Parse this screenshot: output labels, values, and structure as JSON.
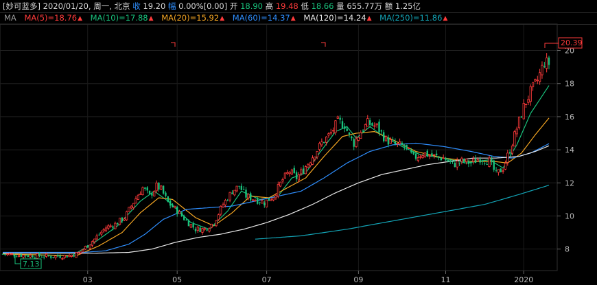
{
  "header": {
    "name": "[妙可蓝多]",
    "date": "2020/01/20,",
    "weekday": "周一,",
    "market": "北京",
    "close_label": "收",
    "close": "19.20",
    "change_label": "幅",
    "change": "0.00%[0.00]",
    "open_label": "开",
    "open": "18.90",
    "high_label": "高",
    "high": "19.48",
    "low_label": "低",
    "low": "18.66",
    "volume_label": "量",
    "volume": "655.77万",
    "amount_label": "额",
    "amount": "1.25亿"
  },
  "ma_legend": {
    "title": "MA",
    "items": [
      {
        "text": "MA(5)=18.76",
        "color": "#ff3b3b"
      },
      {
        "text": "MA(10)=17.88",
        "color": "#19c37d"
      },
      {
        "text": "MA(20)=15.92",
        "color": "#f5a623"
      },
      {
        "text": "MA(60)=14.37",
        "color": "#2f8fff"
      },
      {
        "text": "MA(120)=14.24",
        "color": "#e8e8e8"
      },
      {
        "text": "MA(250)=11.86",
        "color": "#13a3b5"
      }
    ]
  },
  "chart_data": {
    "type": "candlestick",
    "x_ticks": [
      "03",
      "05",
      "07",
      "09",
      "11",
      "2020"
    ],
    "y_ticks": [
      8,
      10,
      12,
      14,
      16,
      18,
      20
    ],
    "ylim": [
      6.7,
      21.6
    ],
    "high_marker": "20.39",
    "low_marker": "7.13",
    "close_path": [
      [
        0,
        7.7
      ],
      [
        12,
        7.6
      ],
      [
        22,
        7.55
      ],
      [
        29,
        7.6
      ],
      [
        33,
        7.75
      ],
      [
        36,
        8.1
      ],
      [
        40,
        8.6
      ],
      [
        45,
        9.3
      ],
      [
        49,
        9.5
      ],
      [
        53,
        9.9
      ],
      [
        56,
        10.6
      ],
      [
        59,
        11.3
      ],
      [
        61,
        11.7
      ],
      [
        64,
        11.2
      ],
      [
        67,
        11.8
      ],
      [
        69,
        11.6
      ],
      [
        72,
        10.8
      ],
      [
        76,
        10.3
      ],
      [
        80,
        9.7
      ],
      [
        84,
        9.2
      ],
      [
        88,
        9.2
      ],
      [
        92,
        9.6
      ],
      [
        96,
        10.7
      ],
      [
        100,
        11.5
      ],
      [
        103,
        11.8
      ],
      [
        106,
        11.2
      ],
      [
        110,
        11.0
      ],
      [
        114,
        10.8
      ],
      [
        118,
        11.2
      ],
      [
        122,
        12.2
      ],
      [
        125,
        12.7
      ],
      [
        128,
        12.3
      ],
      [
        131,
        12.8
      ],
      [
        135,
        13.6
      ],
      [
        139,
        14.4
      ],
      [
        143,
        15.0
      ],
      [
        146,
        15.7
      ],
      [
        149,
        15.5
      ],
      [
        151,
        14.8
      ],
      [
        153,
        14.4
      ],
      [
        156,
        15.1
      ],
      [
        159,
        15.6
      ],
      [
        163,
        15.4
      ],
      [
        167,
        14.6
      ],
      [
        171,
        14.3
      ],
      [
        175,
        14.2
      ],
      [
        179,
        13.5
      ],
      [
        183,
        13.8
      ],
      [
        188,
        13.6
      ],
      [
        192,
        13.5
      ],
      [
        196,
        13.1
      ],
      [
        200,
        13.3
      ],
      [
        204,
        13.2
      ],
      [
        208,
        13.5
      ],
      [
        212,
        13.3
      ],
      [
        215,
        12.5
      ],
      [
        218,
        12.9
      ],
      [
        221,
        14.0
      ],
      [
        224,
        15.3
      ],
      [
        227,
        16.6
      ],
      [
        230,
        17.5
      ],
      [
        233,
        18.2
      ],
      [
        236,
        19.3
      ],
      [
        238,
        19.2
      ]
    ],
    "ma_lines": [
      {
        "name": "MA(10)",
        "color": "#19c37d",
        "points": [
          [
            0,
            7.7
          ],
          [
            30,
            7.6
          ],
          [
            40,
            8.4
          ],
          [
            50,
            9.4
          ],
          [
            60,
            10.9
          ],
          [
            66,
            11.5
          ],
          [
            72,
            10.9
          ],
          [
            82,
            9.6
          ],
          [
            90,
            9.2
          ],
          [
            98,
            10.3
          ],
          [
            104,
            11.5
          ],
          [
            112,
            11.0
          ],
          [
            120,
            11.2
          ],
          [
            126,
            12.3
          ],
          [
            132,
            12.6
          ],
          [
            138,
            13.8
          ],
          [
            145,
            15.1
          ],
          [
            150,
            15.4
          ],
          [
            154,
            14.7
          ],
          [
            160,
            15.4
          ],
          [
            166,
            14.8
          ],
          [
            174,
            14.2
          ],
          [
            182,
            13.7
          ],
          [
            192,
            13.5
          ],
          [
            202,
            13.2
          ],
          [
            212,
            13.4
          ],
          [
            218,
            12.9
          ],
          [
            224,
            14.3
          ],
          [
            230,
            16.2
          ],
          [
            238,
            17.88
          ]
        ]
      },
      {
        "name": "MA(20)",
        "color": "#f5a623",
        "points": [
          [
            0,
            7.7
          ],
          [
            32,
            7.6
          ],
          [
            42,
            8.2
          ],
          [
            52,
            9.0
          ],
          [
            60,
            10.2
          ],
          [
            68,
            11.1
          ],
          [
            74,
            11.0
          ],
          [
            84,
            9.9
          ],
          [
            92,
            9.4
          ],
          [
            100,
            10.2
          ],
          [
            108,
            11.2
          ],
          [
            116,
            11.1
          ],
          [
            124,
            11.7
          ],
          [
            132,
            12.3
          ],
          [
            140,
            13.6
          ],
          [
            148,
            14.8
          ],
          [
            154,
            15.0
          ],
          [
            162,
            15.1
          ],
          [
            170,
            14.6
          ],
          [
            180,
            13.9
          ],
          [
            192,
            13.5
          ],
          [
            204,
            13.3
          ],
          [
            214,
            13.3
          ],
          [
            220,
            13.2
          ],
          [
            226,
            13.8
          ],
          [
            232,
            14.9
          ],
          [
            238,
            15.92
          ]
        ]
      },
      {
        "name": "MA(60)",
        "color": "#2f8fff",
        "points": [
          [
            0,
            7.8
          ],
          [
            35,
            7.8
          ],
          [
            45,
            7.9
          ],
          [
            55,
            8.3
          ],
          [
            62,
            8.9
          ],
          [
            70,
            9.8
          ],
          [
            80,
            10.4
          ],
          [
            90,
            10.5
          ],
          [
            100,
            10.6
          ],
          [
            110,
            10.9
          ],
          [
            120,
            11.2
          ],
          [
            130,
            11.5
          ],
          [
            140,
            12.3
          ],
          [
            150,
            13.2
          ],
          [
            160,
            13.9
          ],
          [
            170,
            14.3
          ],
          [
            180,
            14.4
          ],
          [
            192,
            14.2
          ],
          [
            204,
            13.9
          ],
          [
            214,
            13.6
          ],
          [
            222,
            13.5
          ],
          [
            230,
            13.8
          ],
          [
            238,
            14.37
          ]
        ]
      },
      {
        "name": "MA(120)",
        "color": "#e8e8e8",
        "points": [
          [
            0,
            7.75
          ],
          [
            40,
            7.75
          ],
          [
            55,
            7.8
          ],
          [
            65,
            8.0
          ],
          [
            75,
            8.4
          ],
          [
            85,
            8.7
          ],
          [
            95,
            8.9
          ],
          [
            105,
            9.2
          ],
          [
            115,
            9.6
          ],
          [
            125,
            10.1
          ],
          [
            135,
            10.7
          ],
          [
            145,
            11.4
          ],
          [
            155,
            12.0
          ],
          [
            165,
            12.5
          ],
          [
            175,
            12.8
          ],
          [
            185,
            13.1
          ],
          [
            195,
            13.3
          ],
          [
            205,
            13.5
          ],
          [
            215,
            13.5
          ],
          [
            225,
            13.6
          ],
          [
            232,
            13.9
          ],
          [
            238,
            14.24
          ]
        ]
      },
      {
        "name": "MA(250)",
        "color": "#13a3b5",
        "points": [
          [
            110,
            8.6
          ],
          [
            130,
            8.8
          ],
          [
            150,
            9.2
          ],
          [
            170,
            9.7
          ],
          [
            190,
            10.2
          ],
          [
            210,
            10.7
          ],
          [
            225,
            11.3
          ],
          [
            238,
            11.86
          ]
        ]
      }
    ]
  }
}
